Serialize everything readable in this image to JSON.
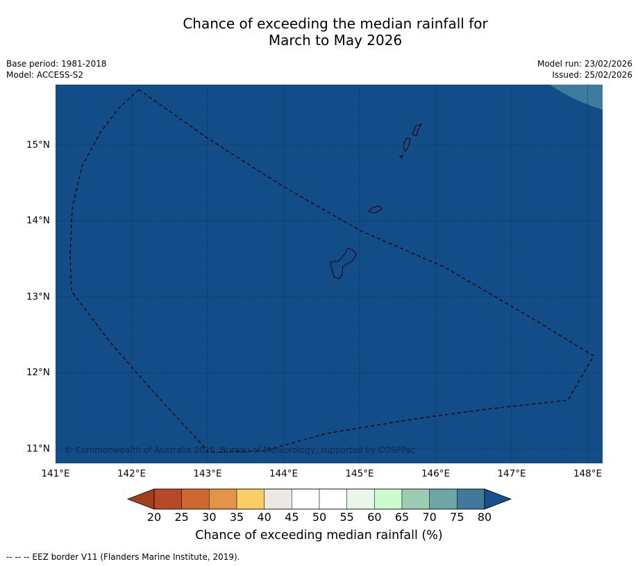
{
  "title": {
    "line1": "Chance of exceeding the median rainfall for",
    "line2": "March to May 2026"
  },
  "meta_left": {
    "base_period": "Base period: 1981-2018",
    "model": "Model: ACCESS-S2"
  },
  "meta_right": {
    "model_run": "Model run: 23/02/2026",
    "issued": "Issued: 25/02/2026"
  },
  "map": {
    "ocean_color": "#134d88",
    "corner_patch_color": "#3f7a9f",
    "lat_labels": [
      "15°N",
      "14°N",
      "13°N",
      "12°N",
      "11°N"
    ],
    "lon_labels": [
      "141°E",
      "142°E",
      "143°E",
      "144°E",
      "145°E",
      "146°E",
      "147°E",
      "148°E"
    ],
    "copyright": "© Commonwealth of Australia 2026, Bureau of Meteorology, supported by COSPPac"
  },
  "colorbar": {
    "ticks": [
      "20",
      "25",
      "30",
      "35",
      "40",
      "45",
      "50",
      "55",
      "60",
      "65",
      "70",
      "75",
      "80"
    ],
    "colors": [
      "#b64a27",
      "#cf6733",
      "#e29549",
      "#fbcd65",
      "#ece8e4",
      "#ffffff",
      "#ffffff",
      "#e9f7ea",
      "#ccfccc",
      "#9ccdb4",
      "#6fa5a6",
      "#42799b"
    ],
    "under_color": "#a1401f",
    "over_color": "#16508c",
    "label": "Chance of exceeding median rainfall (%)"
  },
  "footnote": "--  --  -- EEZ border V11 (Flanders Marine Institute, 2019)."
}
